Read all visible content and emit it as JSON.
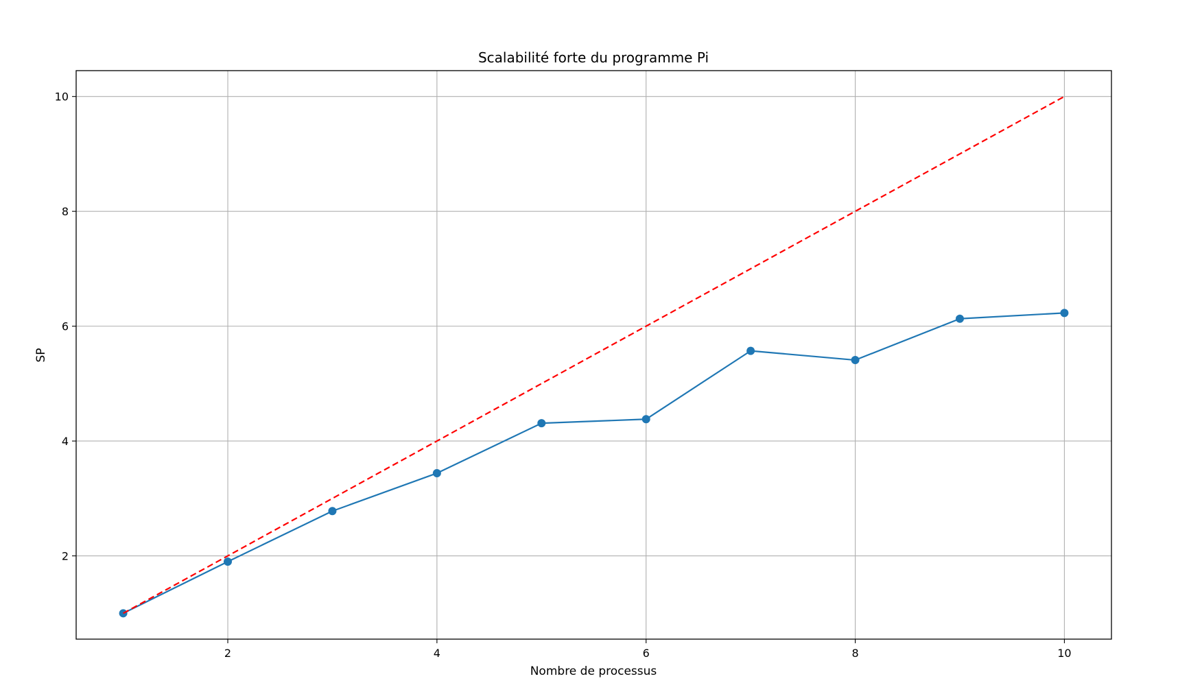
{
  "chart_data": {
    "type": "line",
    "title": "Scalabilité forte du programme Pi",
    "xlabel": "Nombre de processus",
    "ylabel": "SP",
    "xlim": [
      0.55,
      10.45
    ],
    "ylim": [
      0.55,
      10.45
    ],
    "xticks": [
      2,
      4,
      6,
      8,
      10
    ],
    "yticks": [
      2,
      4,
      6,
      8,
      10
    ],
    "grid": true,
    "series": [
      {
        "style": "solid-with-markers",
        "color": "#1f77b4",
        "x": [
          1,
          2,
          3,
          4,
          5,
          6,
          7,
          8,
          9,
          10
        ],
        "values": [
          1.0,
          1.9,
          2.78,
          3.44,
          4.31,
          4.38,
          5.57,
          5.41,
          6.13,
          6.23
        ]
      },
      {
        "style": "dashed",
        "color": "#ff0000",
        "x": [
          1,
          10
        ],
        "values": [
          1,
          10
        ]
      }
    ]
  }
}
